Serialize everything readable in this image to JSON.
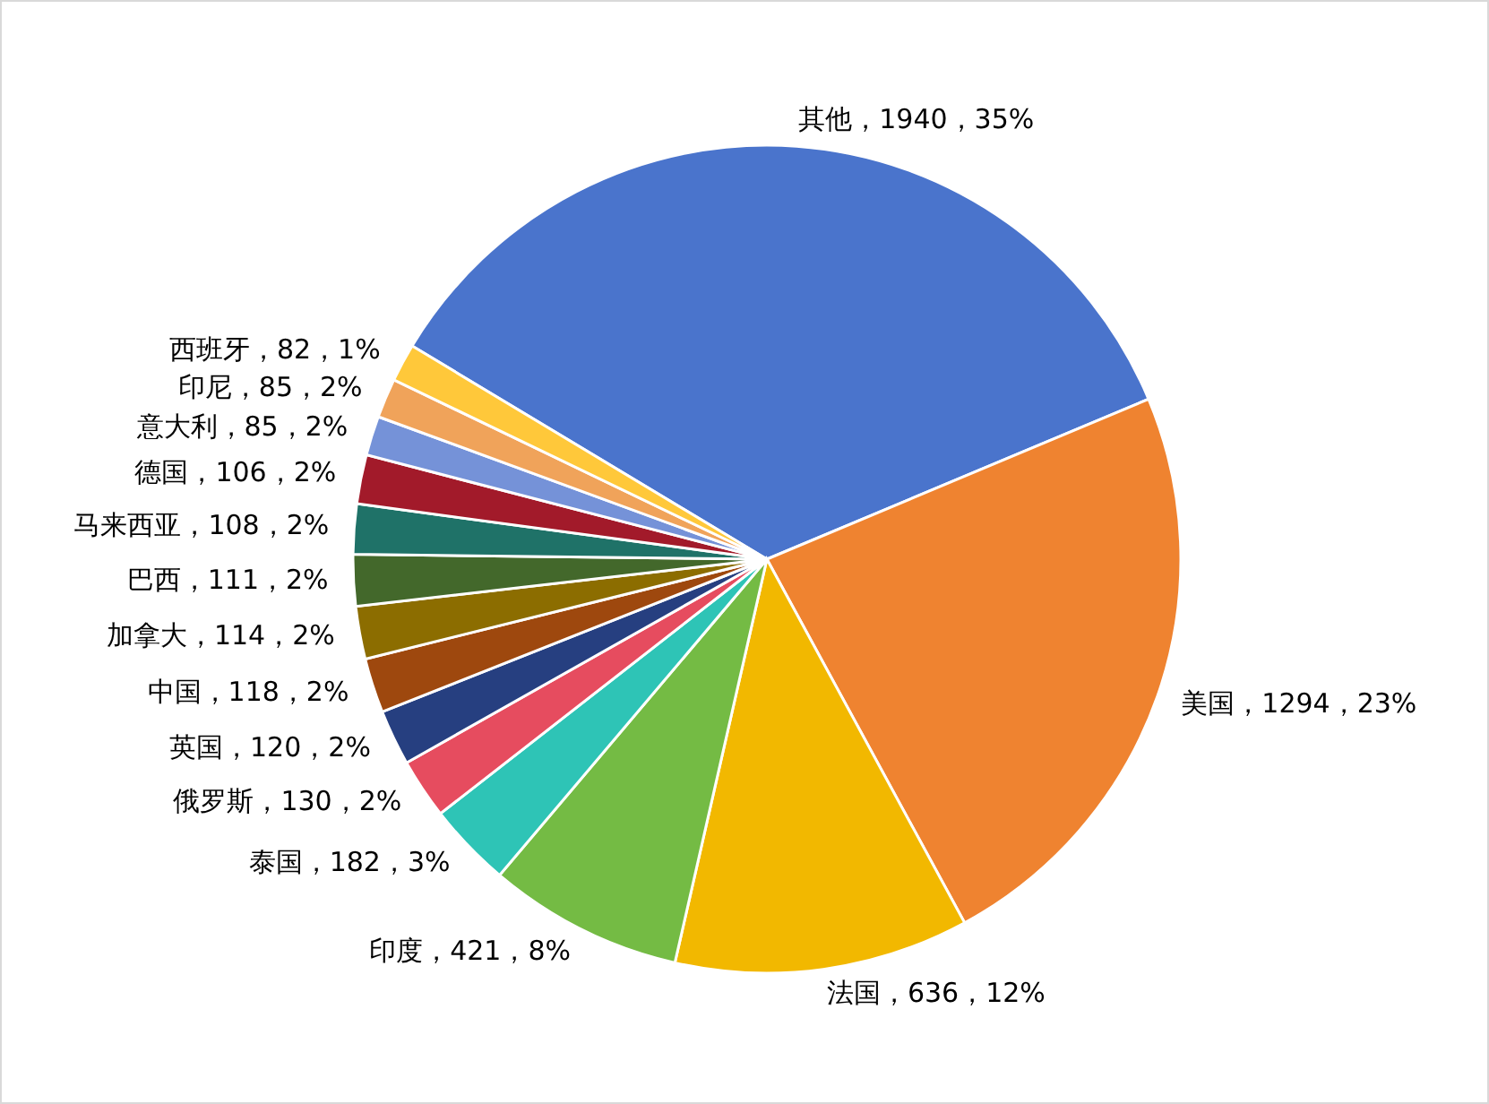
{
  "chart_data": {
    "type": "pie",
    "categories": [
      "其他",
      "美国",
      "法国",
      "印度",
      "泰国",
      "俄罗斯",
      "英国",
      "中国",
      "加拿大",
      "巴西",
      "马来西亚",
      "德国",
      "意大利",
      "印尼",
      "西班牙"
    ],
    "values": [
      1940,
      1294,
      636,
      421,
      182,
      130,
      120,
      118,
      114,
      111,
      108,
      106,
      85,
      85,
      82
    ],
    "value_labels": [
      "1940，35%",
      "1294，23%",
      "636，12%",
      "421，8%",
      "182，3%",
      "130，2%",
      "120，2%",
      "118，2%",
      "114，2%",
      "111，2%",
      "108，2%",
      "106，2%",
      "85，2%",
      "85，2%",
      "82，1%"
    ],
    "colors": [
      "#4a74cc",
      "#ef8330",
      "#f2b800",
      "#74bb44",
      "#2ec4b6",
      "#e64c5f",
      "#263f80",
      "#9e480e",
      "#8c6d00",
      "#43682b",
      "#1f7268",
      "#a21a2a",
      "#7592d8",
      "#f0a35a",
      "#ffc83a"
    ],
    "data_labels": true
  }
}
